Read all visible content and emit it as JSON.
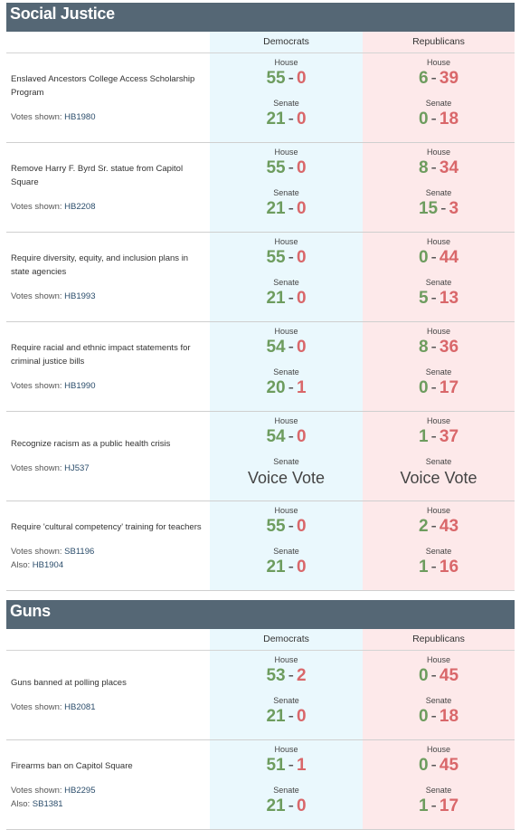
{
  "labels": {
    "house": "House",
    "senate": "Senate",
    "votes_shown": "Votes shown:",
    "also": "Also:",
    "separator": "-"
  },
  "sections": [
    {
      "title": "Social Justice",
      "columns": [
        "Democrats",
        "Republicans"
      ],
      "rows": [
        {
          "title": "Enslaved Ancestors College Access Scholarship Program",
          "votes_shown": "HB1980",
          "democrats": {
            "house": [
              55,
              0
            ],
            "senate": [
              21,
              0
            ]
          },
          "republicans": {
            "house": [
              6,
              39
            ],
            "senate": [
              0,
              18
            ]
          }
        },
        {
          "title": "Remove Harry F. Byrd Sr. statue from Capitol Square",
          "votes_shown": "HB2208",
          "democrats": {
            "house": [
              55,
              0
            ],
            "senate": [
              21,
              0
            ]
          },
          "republicans": {
            "house": [
              8,
              34
            ],
            "senate": [
              15,
              3
            ]
          }
        },
        {
          "title": "Require diversity, equity, and inclusion plans in state agencies",
          "votes_shown": "HB1993",
          "democrats": {
            "house": [
              55,
              0
            ],
            "senate": [
              21,
              0
            ]
          },
          "republicans": {
            "house": [
              0,
              44
            ],
            "senate": [
              5,
              13
            ]
          }
        },
        {
          "title": "Require racial and ethnic impact statements for criminal justice bills",
          "votes_shown": "HB1990",
          "democrats": {
            "house": [
              54,
              0
            ],
            "senate": [
              20,
              1
            ]
          },
          "republicans": {
            "house": [
              8,
              36
            ],
            "senate": [
              0,
              17
            ]
          }
        },
        {
          "title": "Recognize racism as a public health crisis",
          "votes_shown": "HJ537",
          "democrats": {
            "house": [
              54,
              0
            ],
            "senate": "Voice Vote"
          },
          "republicans": {
            "house": [
              1,
              37
            ],
            "senate": "Voice Vote"
          }
        },
        {
          "title": "Require 'cultural competency' training for teachers",
          "votes_shown": "SB1196",
          "also": "HB1904",
          "democrats": {
            "house": [
              55,
              0
            ],
            "senate": [
              21,
              0
            ]
          },
          "republicans": {
            "house": [
              2,
              43
            ],
            "senate": [
              1,
              16
            ]
          }
        }
      ]
    },
    {
      "title": "Guns",
      "columns": [
        "Democrats",
        "Republicans"
      ],
      "rows": [
        {
          "title": "Guns banned at polling places",
          "votes_shown": "HB2081",
          "democrats": {
            "house": [
              53,
              2
            ],
            "senate": [
              21,
              0
            ]
          },
          "republicans": {
            "house": [
              0,
              45
            ],
            "senate": [
              0,
              18
            ]
          }
        },
        {
          "title": "Firearms ban on Capitol Square",
          "votes_shown": "HB2295",
          "also": "SB1381",
          "democrats": {
            "house": [
              51,
              1
            ],
            "senate": [
              21,
              0
            ]
          },
          "republicans": {
            "house": [
              0,
              45
            ],
            "senate": [
              1,
              17
            ]
          }
        }
      ]
    }
  ]
}
